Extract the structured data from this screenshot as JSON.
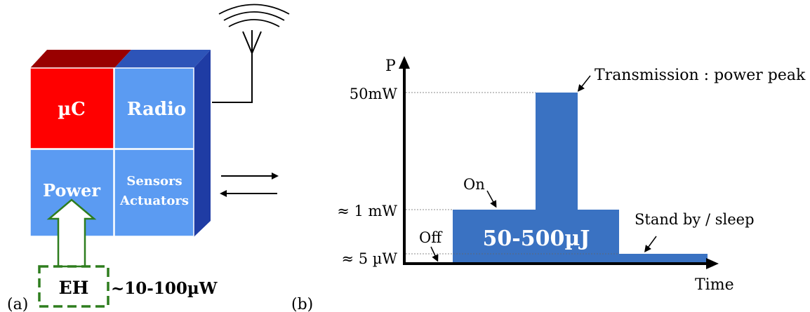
{
  "panel_a": {
    "caption": "(a)",
    "blocks": {
      "uc": "µC",
      "radio": "Radio",
      "power": "Power",
      "sensors_line1": "Sensors",
      "sensors_line2": "Actuators"
    },
    "eh": {
      "label": "EH",
      "power": "~10-100µW"
    },
    "colors": {
      "uc_front": "#ff0000",
      "uc_top": "#990000",
      "blue_front": "#5b9bf2",
      "blue_top": "#2d54b8",
      "blue_side": "#1f3ca4",
      "eh_green": "#2e7d1e"
    },
    "icons": [
      "antenna-icon",
      "radio-waves-icon",
      "bidirectional-arrows-icon"
    ]
  },
  "panel_b": {
    "caption": "(b)",
    "y_axis_label": "P",
    "x_axis_label": "Time",
    "levels": {
      "peak": "50mW",
      "on": "≈ 1 mW",
      "standby": "≈ 5 µW"
    },
    "annotations": {
      "transmission": "Transmission : power peak",
      "on": "On",
      "off": "Off",
      "standby": "Stand by / sleep"
    },
    "energy_label": "50-500µJ",
    "colors": {
      "profile": "#3a72c2"
    }
  }
}
